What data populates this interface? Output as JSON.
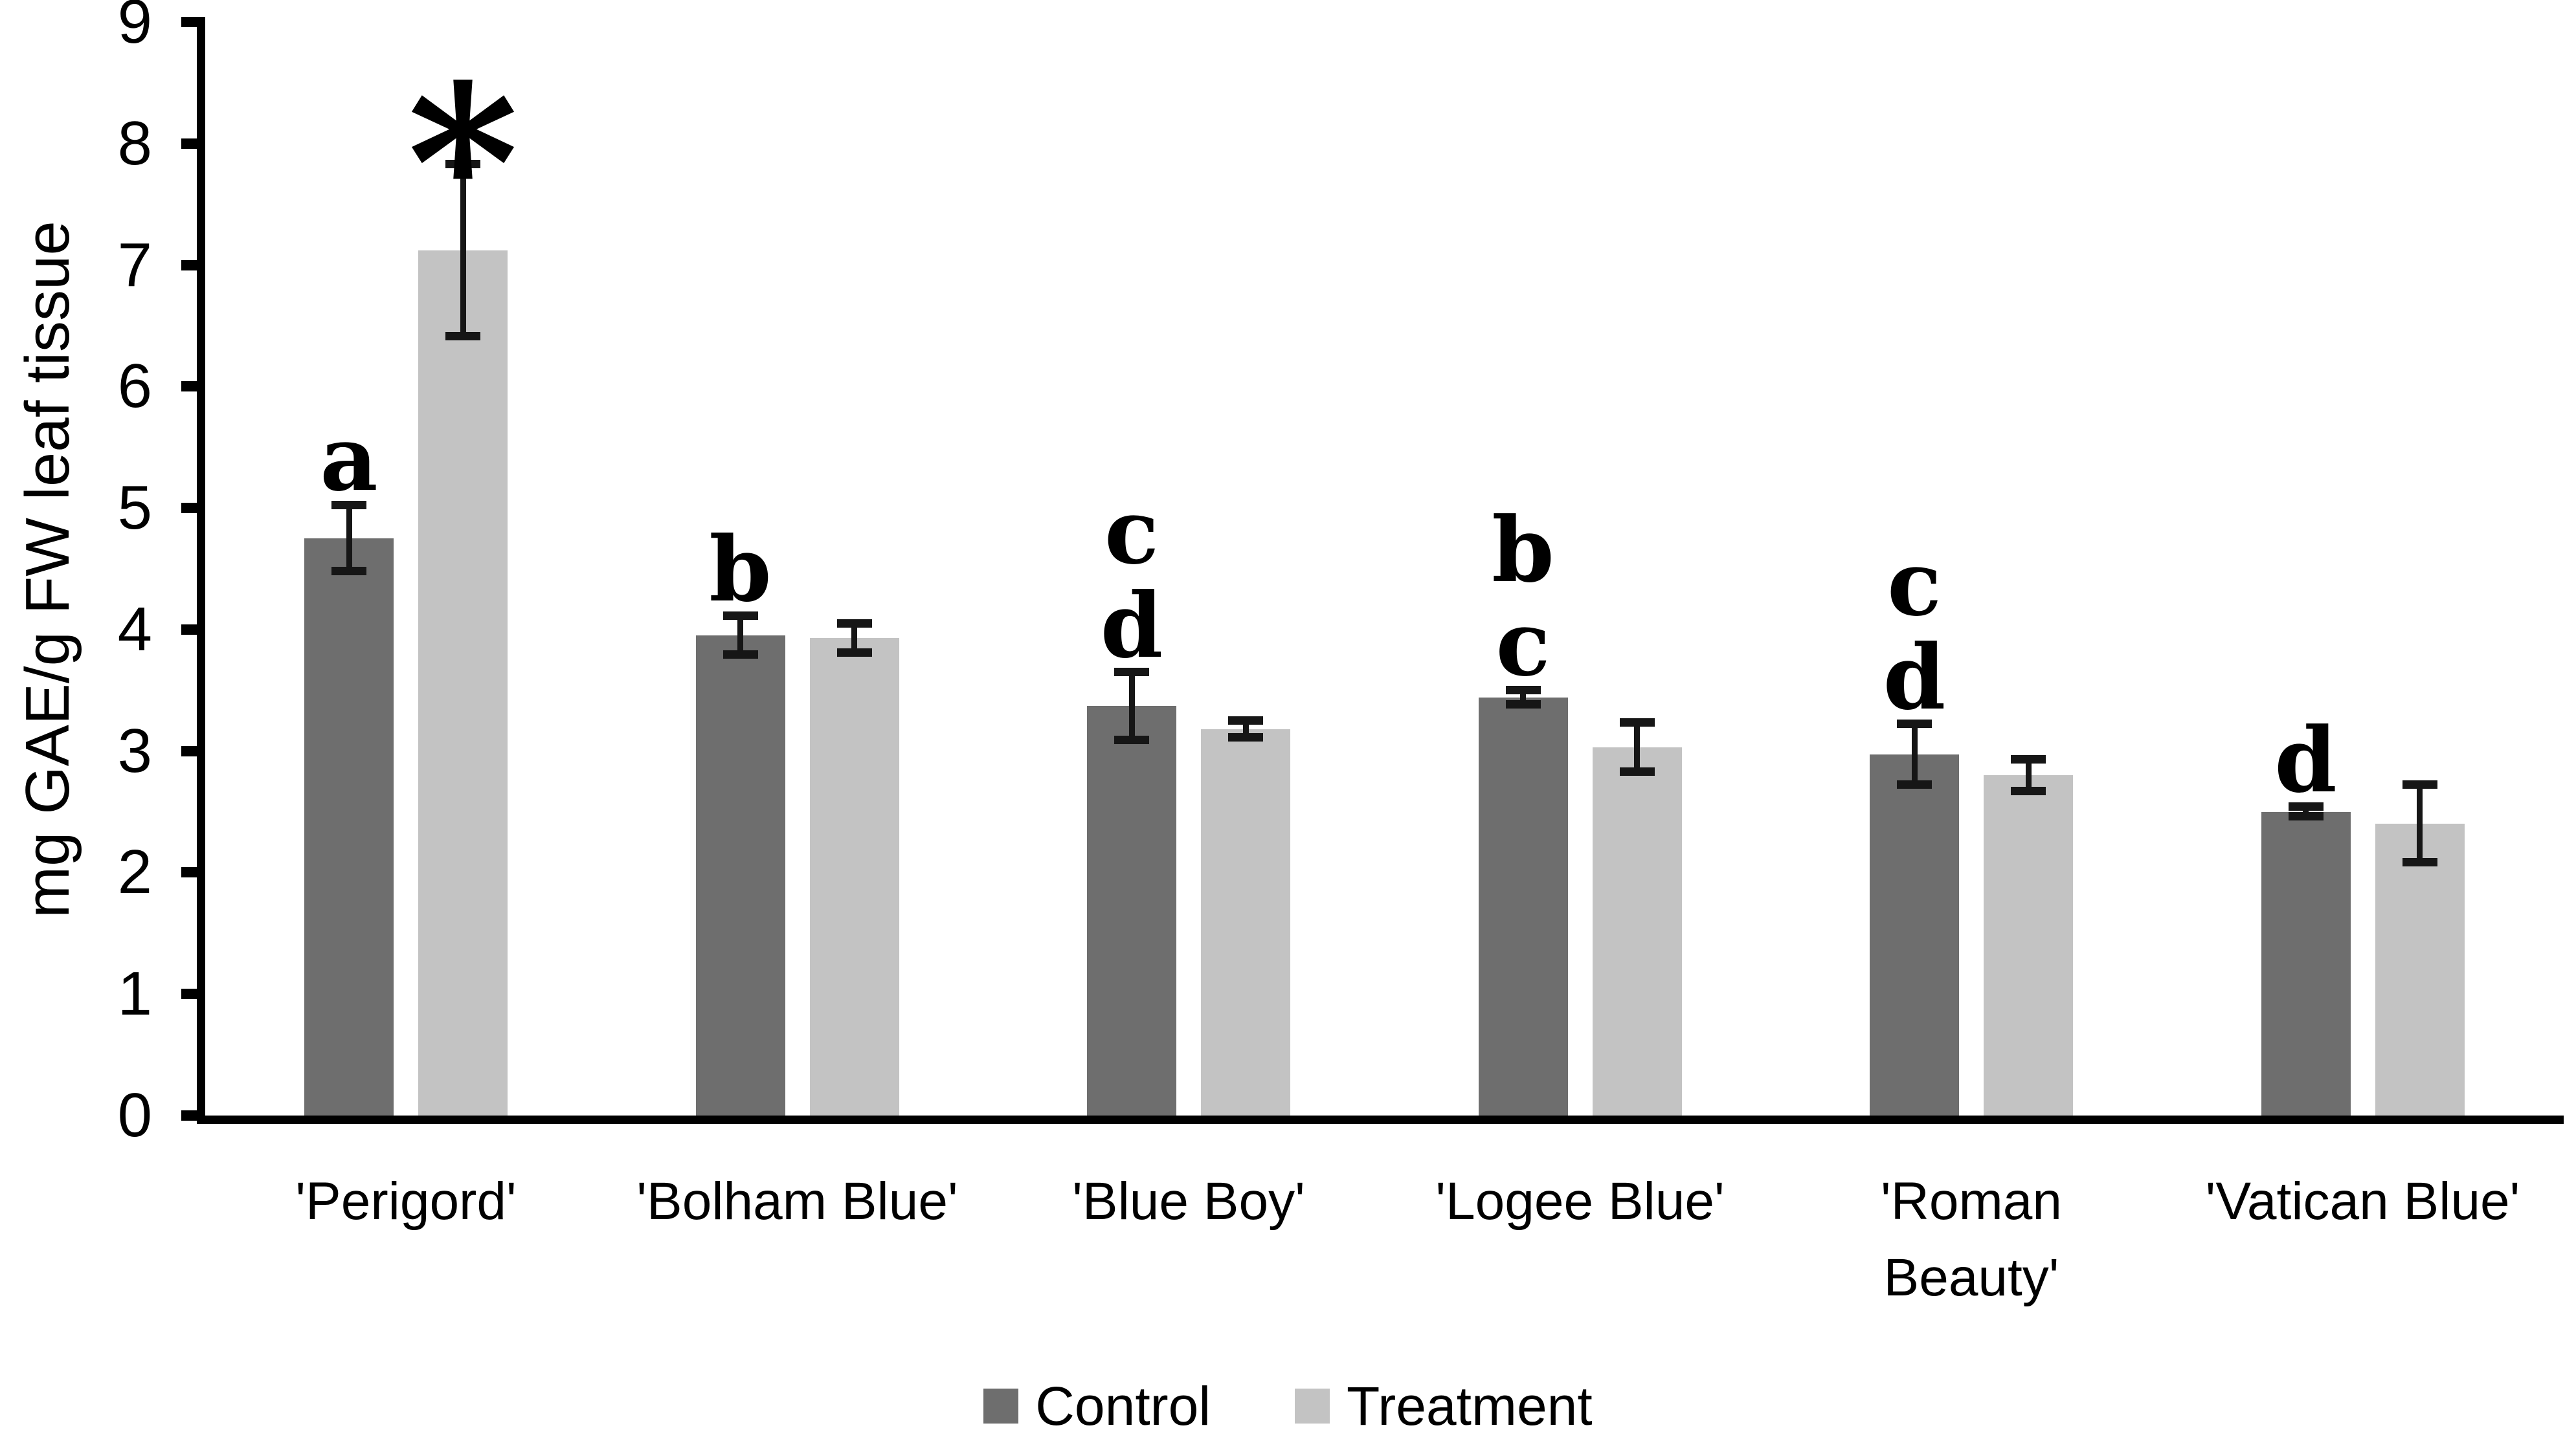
{
  "figure": {
    "background": "#ffffff"
  },
  "chart_data": {
    "type": "bar",
    "title": "",
    "xlabel": "",
    "ylabel": "mg GAE/g FW leaf tissue",
    "ylim": [
      0,
      9
    ],
    "yticks": [
      0,
      1,
      2,
      3,
      4,
      5,
      6,
      7,
      8,
      9
    ],
    "grid": false,
    "legend_position": "bottom",
    "categories": [
      "'Perigord'",
      "'Bolham Blue'",
      "'Blue Boy'",
      "'Logee Blue'",
      "'Roman Beauty'",
      "'Vatican Blue'"
    ],
    "category_lines": [
      [
        "'Perigord'"
      ],
      [
        "'Bolham Blue'"
      ],
      [
        "'Blue Boy'"
      ],
      [
        "'Logee Blue'"
      ],
      [
        "'Roman",
        "Beauty'"
      ],
      [
        "'Vatican Blue'"
      ]
    ],
    "series": [
      {
        "name": "Control",
        "color": "#6e6e6e",
        "values": [
          4.75,
          3.95,
          3.37,
          3.44,
          2.97,
          2.5
        ],
        "errors": [
          0.27,
          0.16,
          0.28,
          0.06,
          0.25,
          0.04
        ]
      },
      {
        "name": "Treatment",
        "color": "#c3c3c3",
        "values": [
          7.12,
          3.93,
          3.18,
          3.03,
          2.8,
          2.4
        ],
        "errors": [
          0.71,
          0.12,
          0.07,
          0.2,
          0.13,
          0.32
        ]
      }
    ],
    "annotations": {
      "control_letters": [
        [
          "a"
        ],
        [
          "b"
        ],
        [
          "c",
          "d"
        ],
        [
          "b",
          "c"
        ],
        [
          "c",
          "d"
        ],
        [
          "d"
        ]
      ],
      "treatment_markers": [
        "*",
        "",
        "",
        "",
        "",
        ""
      ]
    },
    "error_bar_color": "#161616",
    "axis_color": "#000000"
  },
  "legend": {
    "items": [
      {
        "label": "Control",
        "color": "#6e6e6e"
      },
      {
        "label": "Treatment",
        "color": "#c3c3c3"
      }
    ]
  }
}
